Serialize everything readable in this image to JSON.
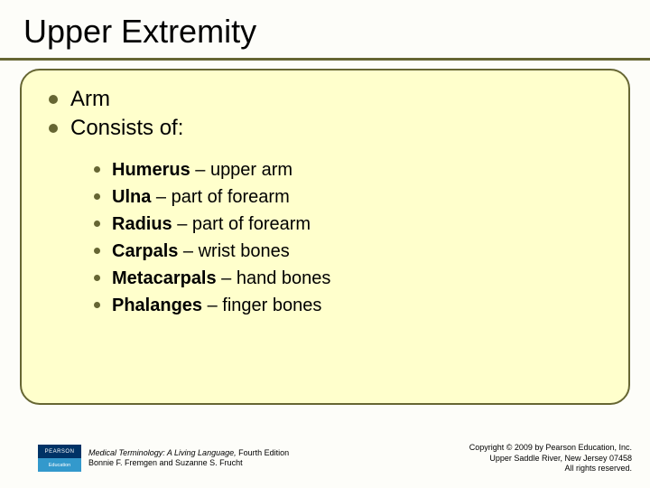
{
  "title": "Upper Extremity",
  "colors": {
    "accent": "#666633",
    "box_bg": "#ffffcc",
    "slide_bg": "#fdfdf9",
    "text": "#000000"
  },
  "main_bullets": [
    {
      "text": "Arm"
    },
    {
      "text": "Consists of:"
    }
  ],
  "sub_bullets": [
    {
      "bone": "Humerus",
      "desc": " – upper arm"
    },
    {
      "bone": "Ulna",
      "desc": " – part of forearm"
    },
    {
      "bone": "Radius",
      "desc": " – part of forearm"
    },
    {
      "bone": "Carpals",
      "desc": " – wrist bones"
    },
    {
      "bone": "Metacarpals",
      "desc": " – hand bones"
    },
    {
      "bone": "Phalanges",
      "desc": " – finger bones"
    }
  ],
  "logo": {
    "top": "PEARSON",
    "bottom": "Education"
  },
  "footer_left": {
    "book_title": "Medical Terminology: A Living Language,",
    "edition": " Fourth Edition",
    "authors": "Bonnie F. Fremgen and Suzanne S. Frucht"
  },
  "footer_right": {
    "line1": "Copyright © 2009 by Pearson Education, Inc.",
    "line2": "Upper Saddle River, New Jersey 07458",
    "line3": "All rights reserved."
  }
}
